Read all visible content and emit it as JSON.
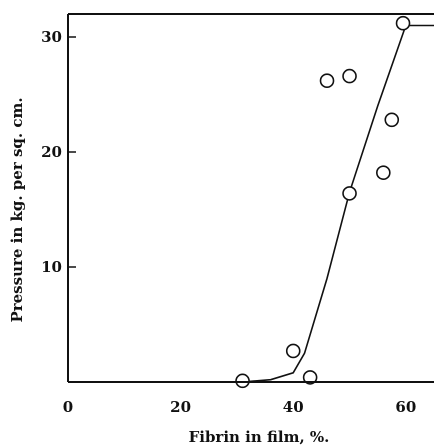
{
  "chart_data": {
    "type": "scatter",
    "xlabel": "Fibrin in film, %.",
    "ylabel": "Pressure in kg. per sq. cm.",
    "xlim": [
      0,
      65
    ],
    "ylim": [
      0,
      32
    ],
    "x_ticks": [
      0,
      20,
      40,
      60
    ],
    "y_ticks": [
      10,
      20,
      30
    ],
    "grid": false,
    "series": [
      {
        "kind": "points",
        "marker": "open-circle",
        "x": [
          31,
          40,
          43,
          46,
          50,
          50,
          56,
          57.5,
          59.5
        ],
        "y": [
          0.1,
          2.7,
          0.4,
          26.2,
          26.6,
          16.4,
          18.2,
          22.8,
          31.2
        ]
      },
      {
        "kind": "fitted-curve",
        "x": [
          0,
          31,
          36,
          40,
          42,
          46,
          50,
          55,
          60,
          65
        ],
        "y": [
          0,
          0,
          0.2,
          0.8,
          2.5,
          9,
          16.5,
          24,
          31,
          31
        ]
      }
    ]
  },
  "colors": {
    "ink": "#111111",
    "background": "#ffffff"
  }
}
